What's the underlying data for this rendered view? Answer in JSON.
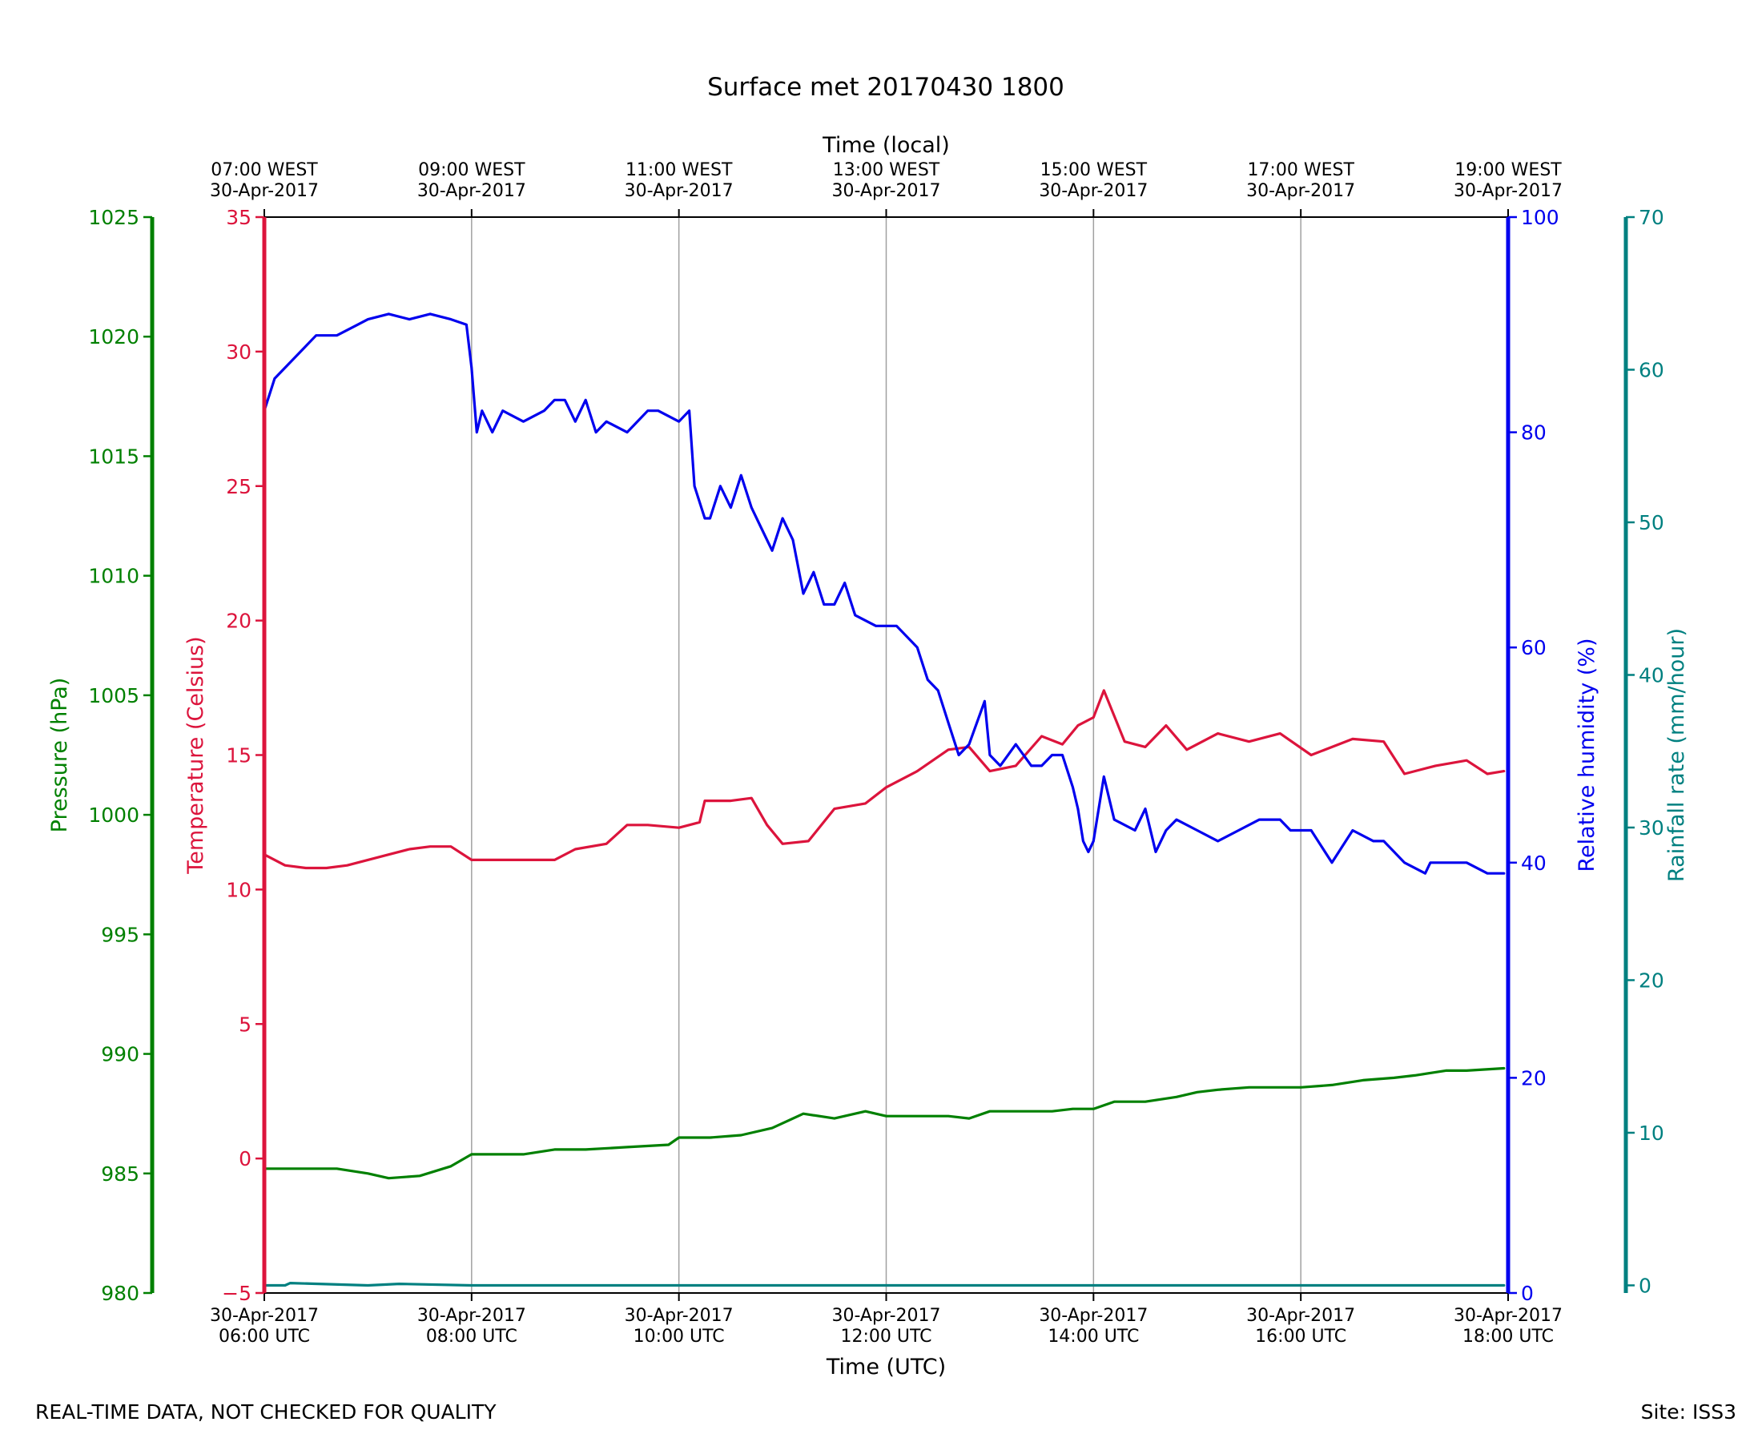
{
  "footer": {
    "left": "REAL-TIME DATA, NOT CHECKED FOR QUALITY",
    "right": "Site: ISS3"
  },
  "colors": {
    "pressure": "#008000",
    "temperature": "#dc143c",
    "humidity": "#0000ee",
    "rainfall": "#008080",
    "grid": "#a0a0a0",
    "text": "#000000"
  },
  "chart_data": {
    "type": "line",
    "title": "Surface met 20170430 1800",
    "xlabel": "Time (UTC)",
    "x2label": "Time (local)",
    "xlim": [
      6,
      18
    ],
    "x_ticks": [
      6,
      8,
      10,
      12,
      14,
      16,
      18
    ],
    "x_tick_labels": [
      [
        "30-Apr-2017",
        "06:00 UTC"
      ],
      [
        "30-Apr-2017",
        "08:00 UTC"
      ],
      [
        "30-Apr-2017",
        "10:00 UTC"
      ],
      [
        "30-Apr-2017",
        "12:00 UTC"
      ],
      [
        "30-Apr-2017",
        "14:00 UTC"
      ],
      [
        "30-Apr-2017",
        "16:00 UTC"
      ],
      [
        "30-Apr-2017",
        "18:00 UTC"
      ]
    ],
    "x2_tick_labels": [
      [
        "07:00 WEST",
        "30-Apr-2017"
      ],
      [
        "09:00 WEST",
        "30-Apr-2017"
      ],
      [
        "11:00 WEST",
        "30-Apr-2017"
      ],
      [
        "13:00 WEST",
        "30-Apr-2017"
      ],
      [
        "15:00 WEST",
        "30-Apr-2017"
      ],
      [
        "17:00 WEST",
        "30-Apr-2017"
      ],
      [
        "19:00 WEST",
        "30-Apr-2017"
      ]
    ],
    "grid": "vertical",
    "axes": {
      "pressure": {
        "label": "Pressure (hPa)",
        "lim": [
          980,
          1025
        ],
        "ticks": [
          980,
          985,
          990,
          995,
          1000,
          1005,
          1010,
          1015,
          1020,
          1025
        ],
        "side": "far-left"
      },
      "temperature": {
        "label": "Temperature (Celsius)",
        "lim": [
          -5,
          35
        ],
        "ticks": [
          -5,
          0,
          5,
          10,
          15,
          20,
          25,
          30,
          35
        ],
        "tick_labels": [
          "−5",
          "0",
          "5",
          "10",
          "15",
          "20",
          "25",
          "30",
          "35"
        ],
        "side": "left"
      },
      "humidity": {
        "label": "Relative humidity (%)",
        "lim": [
          0,
          100
        ],
        "ticks": [
          0,
          20,
          40,
          60,
          80,
          100
        ],
        "side": "right"
      },
      "rainfall": {
        "label": "Rainfall rate (mm/hour)",
        "lim": [
          -0.5,
          70
        ],
        "ticks": [
          0,
          10,
          20,
          30,
          40,
          50,
          60,
          70
        ],
        "side": "far-right"
      }
    },
    "series": [
      {
        "name": "Temperature",
        "axis": "temperature",
        "x": [
          6.0,
          6.2,
          6.4,
          6.6,
          6.8,
          7.0,
          7.2,
          7.4,
          7.6,
          7.8,
          8.0,
          8.15,
          8.3,
          8.5,
          8.8,
          9.0,
          9.3,
          9.5,
          9.7,
          10.0,
          10.2,
          10.25,
          10.5,
          10.7,
          10.85,
          11.0,
          11.25,
          11.5,
          11.8,
          12.0,
          12.3,
          12.6,
          12.8,
          13.0,
          13.25,
          13.5,
          13.7,
          13.85,
          14.0,
          14.1,
          14.3,
          14.5,
          14.7,
          14.9,
          15.2,
          15.5,
          15.8,
          16.1,
          16.5,
          16.8,
          17.0,
          17.3,
          17.6,
          17.8,
          17.96
        ],
        "y": [
          11.3,
          10.9,
          10.8,
          10.8,
          10.9,
          11.1,
          11.3,
          11.5,
          11.6,
          11.6,
          11.1,
          11.1,
          11.1,
          11.1,
          11.1,
          11.5,
          11.7,
          12.4,
          12.4,
          12.3,
          12.5,
          13.3,
          13.3,
          13.4,
          12.4,
          11.7,
          11.8,
          13.0,
          13.2,
          13.8,
          14.4,
          15.2,
          15.3,
          14.4,
          14.6,
          15.7,
          15.4,
          16.1,
          16.4,
          17.4,
          15.5,
          15.3,
          16.1,
          15.2,
          15.8,
          15.5,
          15.8,
          15.0,
          15.6,
          15.5,
          14.3,
          14.6,
          14.8,
          14.3,
          14.4
        ]
      },
      {
        "name": "Relative humidity",
        "axis": "humidity",
        "x": [
          6.0,
          6.1,
          6.3,
          6.5,
          6.7,
          6.9,
          7.0,
          7.2,
          7.4,
          7.6,
          7.8,
          7.95,
          8.0,
          8.05,
          8.1,
          8.2,
          8.3,
          8.5,
          8.7,
          8.8,
          8.9,
          9.0,
          9.1,
          9.2,
          9.3,
          9.5,
          9.7,
          9.8,
          10.0,
          10.1,
          10.15,
          10.25,
          10.3,
          10.4,
          10.5,
          10.6,
          10.7,
          10.8,
          10.9,
          11.0,
          11.1,
          11.2,
          11.3,
          11.4,
          11.5,
          11.6,
          11.7,
          11.9,
          12.1,
          12.3,
          12.4,
          12.5,
          12.6,
          12.7,
          12.8,
          12.95,
          13.0,
          13.1,
          13.25,
          13.4,
          13.5,
          13.6,
          13.7,
          13.8,
          13.85,
          13.9,
          13.95,
          14.0,
          14.1,
          14.2,
          14.4,
          14.5,
          14.6,
          14.7,
          14.8,
          15.0,
          15.2,
          15.4,
          15.6,
          15.8,
          15.9,
          16.1,
          16.3,
          16.5,
          16.7,
          16.8,
          17.0,
          17.2,
          17.25,
          17.4,
          17.6,
          17.8,
          17.96
        ],
        "y": [
          82,
          85,
          87,
          89,
          89,
          90,
          90.5,
          91,
          90.5,
          91,
          90.5,
          90,
          86,
          80,
          82,
          80,
          82,
          81,
          82,
          83,
          83,
          81,
          83,
          80,
          81,
          80,
          82,
          82,
          81,
          82,
          75,
          72,
          72,
          75,
          73,
          76,
          73,
          71,
          69,
          72,
          70,
          65,
          67,
          64,
          64,
          66,
          63,
          62,
          62,
          60,
          57,
          56,
          53,
          50,
          51,
          55,
          50,
          49,
          51,
          49,
          49,
          50,
          50,
          47,
          45,
          42,
          41,
          42,
          48,
          44,
          43,
          45,
          41,
          43,
          44,
          43,
          42,
          43,
          44,
          44,
          43,
          43,
          40,
          43,
          42,
          42,
          40,
          39,
          40,
          40,
          40,
          39,
          39
        ]
      },
      {
        "name": "Pressure",
        "axis": "pressure",
        "x": [
          6.0,
          6.3,
          6.7,
          7.0,
          7.2,
          7.5,
          7.8,
          8.0,
          8.2,
          8.5,
          8.8,
          9.1,
          9.5,
          9.9,
          10.0,
          10.3,
          10.6,
          10.9,
          11.2,
          11.5,
          11.8,
          12.0,
          12.3,
          12.6,
          12.8,
          13.0,
          13.3,
          13.6,
          13.8,
          14.0,
          14.2,
          14.5,
          14.8,
          15.0,
          15.2,
          15.5,
          15.8,
          16.0,
          16.3,
          16.6,
          16.9,
          17.1,
          17.4,
          17.6,
          17.96
        ],
        "y": [
          985.2,
          985.2,
          985.2,
          985.0,
          984.8,
          984.9,
          985.3,
          985.8,
          985.8,
          985.8,
          986.0,
          986.0,
          986.1,
          986.2,
          986.5,
          986.5,
          986.6,
          986.9,
          987.5,
          987.3,
          987.6,
          987.4,
          987.4,
          987.4,
          987.3,
          987.6,
          987.6,
          987.6,
          987.7,
          987.7,
          988.0,
          988.0,
          988.2,
          988.4,
          988.5,
          988.6,
          988.6,
          988.6,
          988.7,
          988.9,
          989.0,
          989.1,
          989.3,
          989.3,
          989.4
        ]
      },
      {
        "name": "Rainfall rate",
        "axis": "rainfall",
        "x": [
          6.0,
          6.2,
          6.25,
          7.0,
          7.3,
          8.0,
          9.0,
          10.0,
          12.0,
          14.0,
          16.0,
          17.96
        ],
        "y": [
          0,
          0,
          0.15,
          0,
          0.1,
          0,
          0,
          0,
          0,
          0,
          0,
          0
        ]
      }
    ]
  }
}
